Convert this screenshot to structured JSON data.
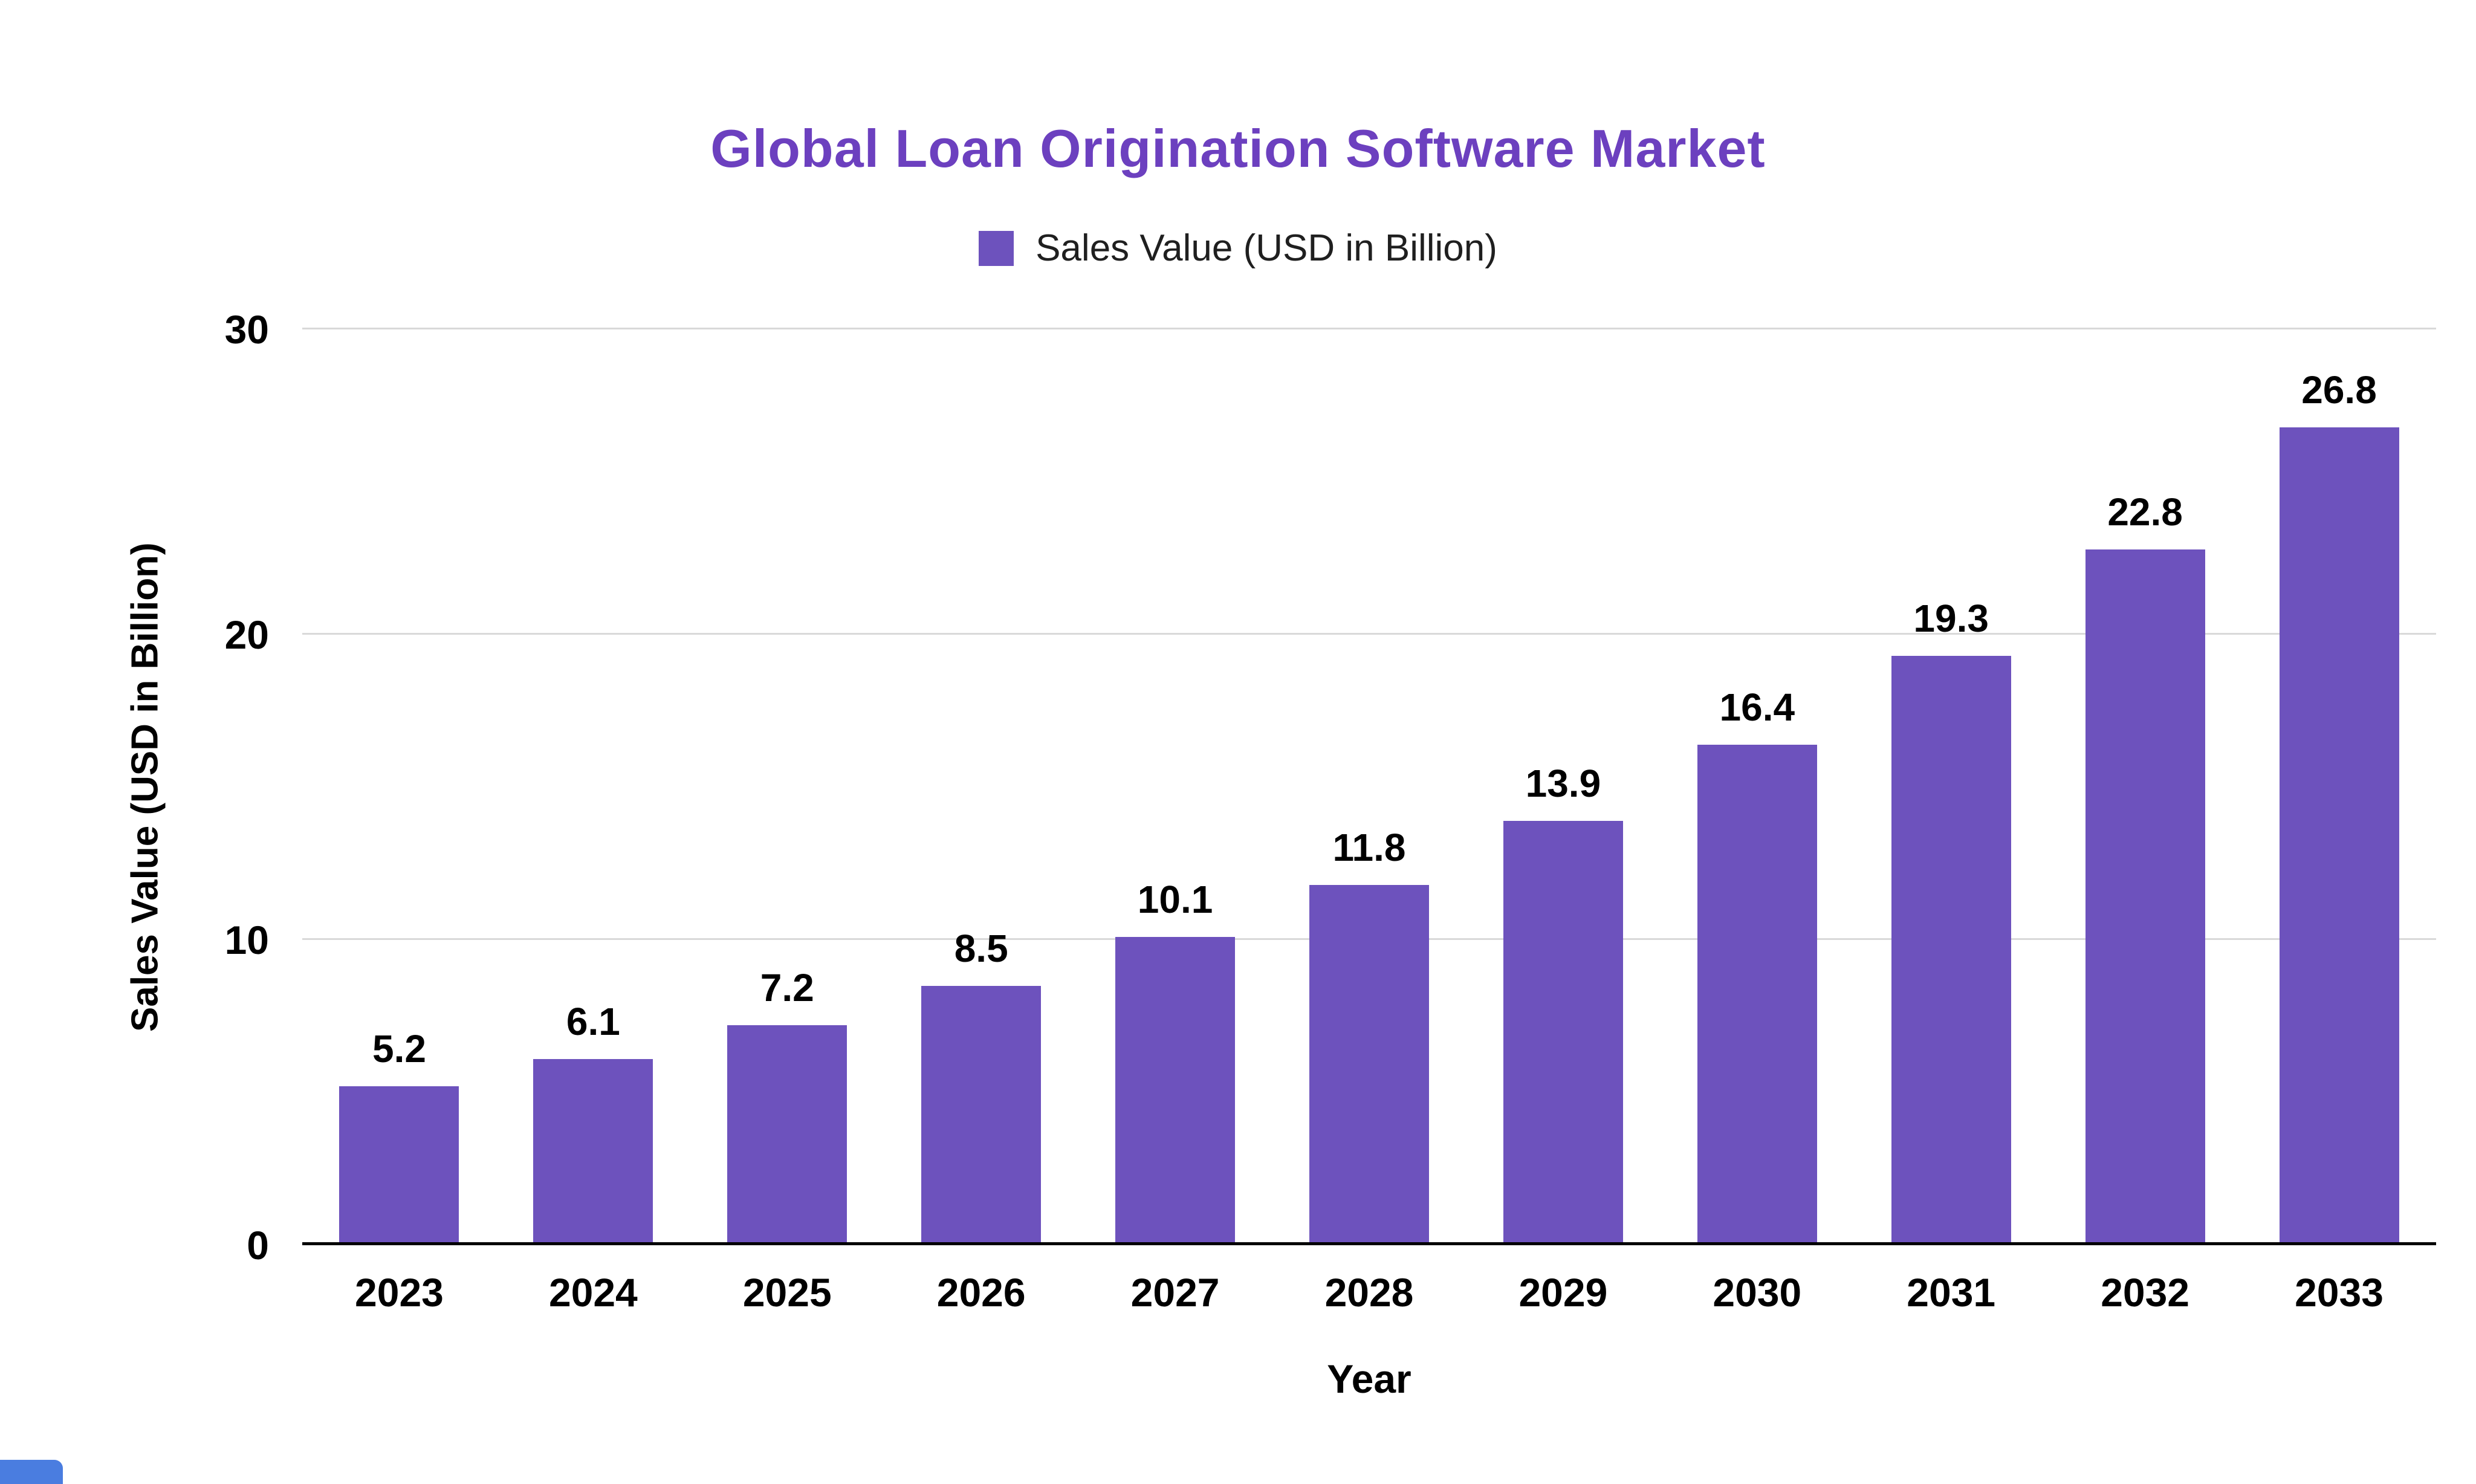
{
  "chart_data": {
    "type": "bar",
    "title": "Global Loan Origination Software Market",
    "legend_label": "Sales Value (USD in Billion)",
    "legend_position": "top",
    "xlabel": "Year",
    "ylabel": "Sales Value (USD in Billion)",
    "categories": [
      "2023",
      "2024",
      "2025",
      "2026",
      "2027",
      "2028",
      "2029",
      "2030",
      "2031",
      "2032",
      "2033"
    ],
    "values": [
      5.2,
      6.1,
      7.2,
      8.5,
      10.1,
      11.8,
      13.9,
      16.4,
      19.3,
      22.8,
      26.8
    ],
    "ylim": [
      0,
      30
    ],
    "yticks": [
      0,
      10,
      20,
      30
    ],
    "grid": true,
    "colors": {
      "bar": "#6d52bd",
      "title": "#6c40bf",
      "gridline": "#d9d9d9",
      "axis_line": "#000000",
      "corner_strip": "#4a7de0"
    }
  }
}
